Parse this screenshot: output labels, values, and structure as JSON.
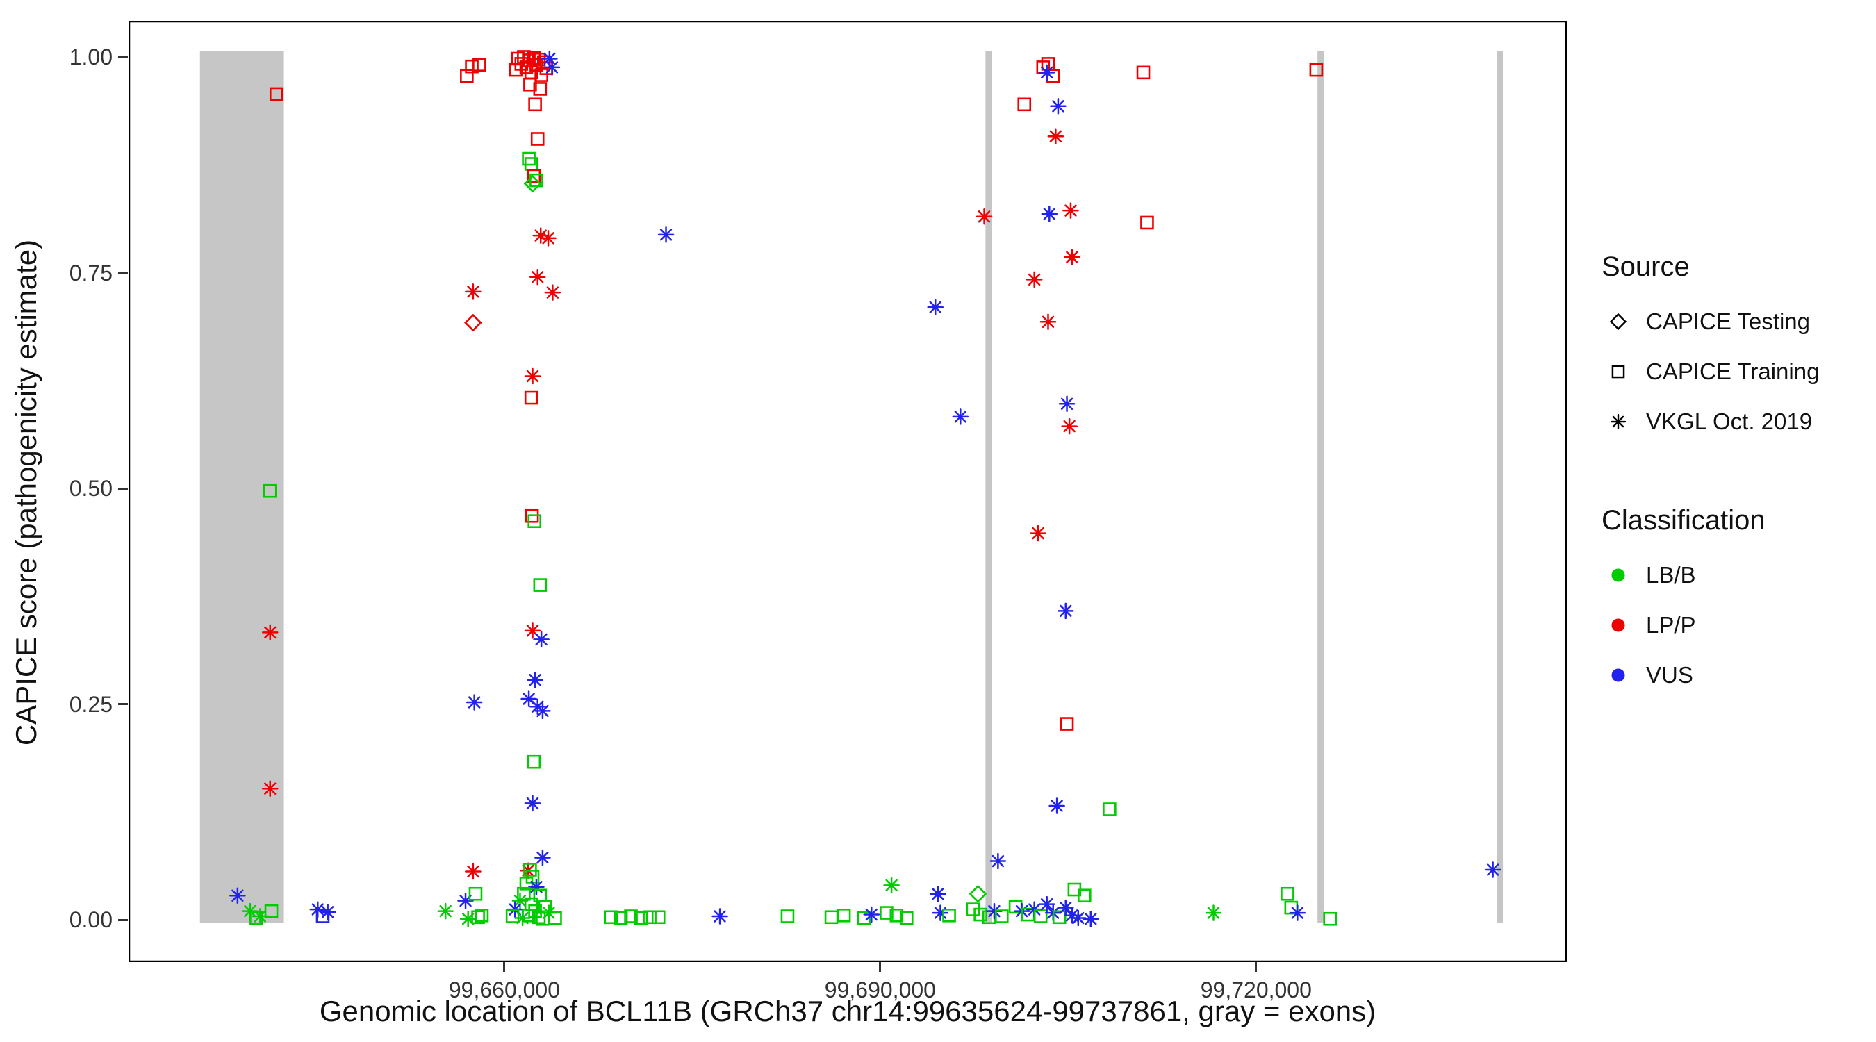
{
  "figure": {
    "background": "#FFFFFF",
    "panel_border_color": "#000000"
  },
  "legend": {
    "source": {
      "title": "Source",
      "items": [
        {
          "label": "CAPICE Testing",
          "shape": "diamond"
        },
        {
          "label": "CAPICE Training",
          "shape": "square"
        },
        {
          "label": "VKGL Oct. 2019",
          "shape": "asterisk"
        }
      ]
    },
    "classification": {
      "title": "Classification",
      "items": [
        {
          "label": "LB/B",
          "color": "#00CC00"
        },
        {
          "label": "LP/P",
          "color": "#EE0000"
        },
        {
          "label": "VUS",
          "color": "#2222EE"
        }
      ]
    }
  },
  "chart_data": {
    "type": "scatter",
    "title": "",
    "xlabel": "Genomic location of BCL11B (GRCh37 chr14:99635624-99737861, gray = exons)",
    "ylabel": "CAPICE score (pathogenicity estimate)",
    "x_axis": {
      "min": 99630000,
      "max": 99744800,
      "ticks": [
        {
          "value": 99660000,
          "label": "99,660,000"
        },
        {
          "value": 99690000,
          "label": "99,690,000"
        },
        {
          "value": 99720000,
          "label": "99,720,000"
        }
      ]
    },
    "y_axis": {
      "min": 0,
      "max": 1,
      "ticks": [
        {
          "value": 0.0,
          "label": "0.00"
        },
        {
          "value": 0.25,
          "label": "0.25"
        },
        {
          "value": 0.5,
          "label": "0.50"
        },
        {
          "value": 0.75,
          "label": "0.75"
        },
        {
          "value": 1.0,
          "label": "1.00"
        }
      ]
    },
    "grid": false,
    "legend_position": "right",
    "exon_color": "#C6C6C6",
    "exons_gray_regions": [
      {
        "start": 99635700,
        "end": 99642400
      },
      {
        "start": 99698400,
        "end": 99698900
      },
      {
        "start": 99724900,
        "end": 99725400
      },
      {
        "start": 99739200,
        "end": 99739700
      }
    ],
    "shape_legend": {
      "diamond": "CAPICE Testing",
      "square": "CAPICE Training",
      "asterisk": "VKGL Oct. 2019"
    },
    "color_legend": {
      "LB/B": "#00CC00",
      "LP/P": "#EE0000",
      "VUS": "#2222EE"
    },
    "points_format": [
      "genomic_position",
      "capice_score",
      "source_shape",
      "classification"
    ],
    "points": [
      [
        99641800,
        0.957,
        "square",
        "LP/P"
      ],
      [
        99641300,
        0.497,
        "square",
        "LB/B"
      ],
      [
        99641300,
        0.333,
        "asterisk",
        "LP/P"
      ],
      [
        99641300,
        0.152,
        "asterisk",
        "LP/P"
      ],
      [
        99638700,
        0.028,
        "asterisk",
        "VUS"
      ],
      [
        99639700,
        0.01,
        "asterisk",
        "LB/B"
      ],
      [
        99640500,
        0.004,
        "asterisk",
        "LB/B"
      ],
      [
        99641400,
        0.01,
        "square",
        "LB/B"
      ],
      [
        99640200,
        0.002,
        "square",
        "LB/B"
      ],
      [
        99645100,
        0.012,
        "asterisk",
        "VUS"
      ],
      [
        99645900,
        0.009,
        "asterisk",
        "VUS"
      ],
      [
        99645500,
        0.004,
        "square",
        "VUS"
      ],
      [
        99655300,
        0.01,
        "asterisk",
        "LB/B"
      ],
      [
        99656900,
        0.022,
        "asterisk",
        "VUS"
      ],
      [
        99657000,
        0.978,
        "square",
        "LP/P"
      ],
      [
        99657400,
        0.989,
        "square",
        "LP/P"
      ],
      [
        99658000,
        0.991,
        "square",
        "LP/P"
      ],
      [
        99657500,
        0.728,
        "asterisk",
        "LP/P"
      ],
      [
        99657500,
        0.692,
        "diamond",
        "LP/P"
      ],
      [
        99657600,
        0.252,
        "asterisk",
        "VUS"
      ],
      [
        99657500,
        0.056,
        "asterisk",
        "LP/P"
      ],
      [
        99657700,
        0.03,
        "square",
        "LB/B"
      ],
      [
        99657900,
        0.003,
        "square",
        "LB/B"
      ],
      [
        99658200,
        0.005,
        "square",
        "LB/B"
      ],
      [
        99657100,
        0.001,
        "asterisk",
        "LB/B"
      ],
      [
        99660900,
        0.985,
        "square",
        "LP/P"
      ],
      [
        99661100,
        0.998,
        "square",
        "LP/P"
      ],
      [
        99661350,
        0.992,
        "square",
        "LP/P"
      ],
      [
        99661550,
        1.0,
        "square",
        "LP/P"
      ],
      [
        99661750,
        0.988,
        "square",
        "LP/P"
      ],
      [
        99661950,
        0.996,
        "square",
        "LP/P"
      ],
      [
        99662150,
        0.982,
        "square",
        "LP/P"
      ],
      [
        99662350,
        0.999,
        "square",
        "LP/P"
      ],
      [
        99662550,
        0.991,
        "square",
        "LP/P"
      ],
      [
        99662750,
        0.997,
        "square",
        "LP/P"
      ],
      [
        99662950,
        0.979,
        "square",
        "LP/P"
      ],
      [
        99663150,
        0.994,
        "square",
        "LP/P"
      ],
      [
        99663350,
        0.987,
        "square",
        "LP/P"
      ],
      [
        99662050,
        0.968,
        "square",
        "LP/P"
      ],
      [
        99662850,
        0.963,
        "square",
        "LP/P"
      ],
      [
        99662450,
        0.945,
        "square",
        "LP/P"
      ],
      [
        99663600,
        0.998,
        "asterisk",
        "VUS"
      ],
      [
        99663800,
        0.988,
        "asterisk",
        "VUS"
      ],
      [
        99662650,
        0.905,
        "square",
        "LP/P"
      ],
      [
        99661950,
        0.882,
        "square",
        "LB/B"
      ],
      [
        99662150,
        0.876,
        "square",
        "LB/B"
      ],
      [
        99662350,
        0.862,
        "square",
        "LP/P"
      ],
      [
        99662550,
        0.857,
        "square",
        "LB/B"
      ],
      [
        99662250,
        0.853,
        "diamond",
        "LB/B"
      ],
      [
        99662900,
        0.793,
        "asterisk",
        "LP/P"
      ],
      [
        99663500,
        0.79,
        "asterisk",
        "LP/P"
      ],
      [
        99662650,
        0.745,
        "asterisk",
        "LP/P"
      ],
      [
        99663850,
        0.727,
        "asterisk",
        "LP/P"
      ],
      [
        99662250,
        0.63,
        "asterisk",
        "LP/P"
      ],
      [
        99662150,
        0.605,
        "square",
        "LP/P"
      ],
      [
        99662200,
        0.468,
        "square",
        "LP/P"
      ],
      [
        99662400,
        0.462,
        "square",
        "LB/B"
      ],
      [
        99662850,
        0.388,
        "square",
        "LB/B"
      ],
      [
        99662250,
        0.335,
        "asterisk",
        "LP/P"
      ],
      [
        99662950,
        0.325,
        "asterisk",
        "VUS"
      ],
      [
        99662450,
        0.278,
        "asterisk",
        "VUS"
      ],
      [
        99661950,
        0.256,
        "asterisk",
        "VUS"
      ],
      [
        99662650,
        0.247,
        "asterisk",
        "VUS"
      ],
      [
        99663050,
        0.242,
        "asterisk",
        "VUS"
      ],
      [
        99662350,
        0.183,
        "square",
        "LB/B"
      ],
      [
        99662250,
        0.135,
        "asterisk",
        "VUS"
      ],
      [
        99663050,
        0.072,
        "asterisk",
        "VUS"
      ],
      [
        99661900,
        0.057,
        "asterisk",
        "LP/P"
      ],
      [
        99662050,
        0.058,
        "square",
        "LB/B"
      ],
      [
        99662250,
        0.05,
        "square",
        "LB/B"
      ],
      [
        99661750,
        0.042,
        "square",
        "LB/B"
      ],
      [
        99662550,
        0.038,
        "asterisk",
        "VUS"
      ],
      [
        99661550,
        0.03,
        "square",
        "LB/B"
      ],
      [
        99662850,
        0.028,
        "square",
        "LB/B"
      ],
      [
        99661250,
        0.022,
        "asterisk",
        "LB/B"
      ],
      [
        99662150,
        0.018,
        "square",
        "LB/B"
      ],
      [
        99663250,
        0.015,
        "square",
        "LB/B"
      ],
      [
        99660850,
        0.012,
        "asterisk",
        "VUS"
      ],
      [
        99662450,
        0.01,
        "square",
        "LB/B"
      ],
      [
        99663550,
        0.008,
        "asterisk",
        "LB/B"
      ],
      [
        99661950,
        0.005,
        "square",
        "LB/B"
      ],
      [
        99662750,
        0.003,
        "square",
        "LB/B"
      ],
      [
        99661450,
        0.002,
        "asterisk",
        "LB/B"
      ],
      [
        99663050,
        0.001,
        "square",
        "LB/B"
      ],
      [
        99660650,
        0.004,
        "square",
        "LB/B"
      ],
      [
        99664050,
        0.002,
        "square",
        "LB/B"
      ],
      [
        99668500,
        0.003,
        "square",
        "LB/B"
      ],
      [
        99669300,
        0.002,
        "square",
        "LB/B"
      ],
      [
        99670100,
        0.004,
        "square",
        "LB/B"
      ],
      [
        99670900,
        0.002,
        "square",
        "LB/B"
      ],
      [
        99671600,
        0.003,
        "square",
        "LB/B"
      ],
      [
        99672300,
        0.003,
        "square",
        "LB/B"
      ],
      [
        99672900,
        0.794,
        "asterisk",
        "VUS"
      ],
      [
        99677200,
        0.004,
        "asterisk",
        "VUS"
      ],
      [
        99682600,
        0.004,
        "square",
        "LB/B"
      ],
      [
        99686100,
        0.003,
        "square",
        "LB/B"
      ],
      [
        99687100,
        0.005,
        "square",
        "LB/B"
      ],
      [
        99688700,
        0.002,
        "square",
        "LB/B"
      ],
      [
        99689300,
        0.006,
        "asterisk",
        "VUS"
      ],
      [
        99690900,
        0.04,
        "asterisk",
        "LB/B"
      ],
      [
        99690500,
        0.008,
        "square",
        "LB/B"
      ],
      [
        99691300,
        0.005,
        "square",
        "LB/B"
      ],
      [
        99692100,
        0.002,
        "square",
        "LB/B"
      ],
      [
        99694400,
        0.71,
        "asterisk",
        "VUS"
      ],
      [
        99696400,
        0.583,
        "asterisk",
        "VUS"
      ],
      [
        99694600,
        0.03,
        "asterisk",
        "VUS"
      ],
      [
        99694800,
        0.008,
        "asterisk",
        "VUS"
      ],
      [
        99695500,
        0.005,
        "square",
        "LB/B"
      ],
      [
        99698300,
        0.815,
        "asterisk",
        "LP/P"
      ],
      [
        99697800,
        0.03,
        "diamond",
        "LB/B"
      ],
      [
        99697400,
        0.012,
        "square",
        "LB/B"
      ],
      [
        99698000,
        0.006,
        "square",
        "LB/B"
      ],
      [
        99698700,
        0.003,
        "square",
        "LB/B"
      ],
      [
        99699400,
        0.068,
        "asterisk",
        "VUS"
      ],
      [
        99699100,
        0.01,
        "asterisk",
        "VUS"
      ],
      [
        99699700,
        0.004,
        "square",
        "LB/B"
      ],
      [
        99701500,
        0.945,
        "square",
        "LP/P"
      ],
      [
        99703000,
        0.988,
        "square",
        "LP/P"
      ],
      [
        99703400,
        0.992,
        "square",
        "LP/P"
      ],
      [
        99703800,
        0.978,
        "square",
        "LP/P"
      ],
      [
        99703300,
        0.982,
        "asterisk",
        "VUS"
      ],
      [
        99704200,
        0.943,
        "asterisk",
        "VUS"
      ],
      [
        99704000,
        0.908,
        "asterisk",
        "LP/P"
      ],
      [
        99705200,
        0.822,
        "asterisk",
        "LP/P"
      ],
      [
        99703500,
        0.818,
        "asterisk",
        "VUS"
      ],
      [
        99702300,
        0.742,
        "asterisk",
        "LP/P"
      ],
      [
        99705300,
        0.768,
        "asterisk",
        "LP/P"
      ],
      [
        99703400,
        0.693,
        "asterisk",
        "LP/P"
      ],
      [
        99704900,
        0.598,
        "asterisk",
        "VUS"
      ],
      [
        99705100,
        0.572,
        "asterisk",
        "LP/P"
      ],
      [
        99702600,
        0.448,
        "asterisk",
        "LP/P"
      ],
      [
        99704800,
        0.358,
        "asterisk",
        "VUS"
      ],
      [
        99704900,
        0.227,
        "square",
        "LP/P"
      ],
      [
        99704100,
        0.132,
        "asterisk",
        "VUS"
      ],
      [
        99700800,
        0.015,
        "square",
        "LB/B"
      ],
      [
        99701300,
        0.01,
        "asterisk",
        "VUS"
      ],
      [
        99701800,
        0.006,
        "square",
        "LB/B"
      ],
      [
        99702300,
        0.012,
        "asterisk",
        "VUS"
      ],
      [
        99702800,
        0.004,
        "square",
        "LB/B"
      ],
      [
        99703300,
        0.018,
        "asterisk",
        "VUS"
      ],
      [
        99703800,
        0.008,
        "asterisk",
        "VUS"
      ],
      [
        99704300,
        0.003,
        "square",
        "LB/B"
      ],
      [
        99704800,
        0.014,
        "asterisk",
        "VUS"
      ],
      [
        99705300,
        0.005,
        "asterisk",
        "VUS"
      ],
      [
        99705800,
        0.002,
        "asterisk",
        "VUS"
      ],
      [
        99706300,
        0.028,
        "square",
        "LB/B"
      ],
      [
        99705500,
        0.035,
        "square",
        "LB/B"
      ],
      [
        99706800,
        0.001,
        "asterisk",
        "VUS"
      ],
      [
        99708300,
        0.128,
        "square",
        "LB/B"
      ],
      [
        99711000,
        0.982,
        "square",
        "LP/P"
      ],
      [
        99711300,
        0.808,
        "square",
        "LP/P"
      ],
      [
        99716600,
        0.008,
        "asterisk",
        "LB/B"
      ],
      [
        99722500,
        0.03,
        "square",
        "LB/B"
      ],
      [
        99722800,
        0.014,
        "square",
        "LB/B"
      ],
      [
        99723300,
        0.008,
        "asterisk",
        "VUS"
      ],
      [
        99724800,
        0.985,
        "square",
        "LP/P"
      ],
      [
        99725900,
        0.001,
        "square",
        "LB/B"
      ],
      [
        99738900,
        0.058,
        "asterisk",
        "VUS"
      ]
    ]
  }
}
